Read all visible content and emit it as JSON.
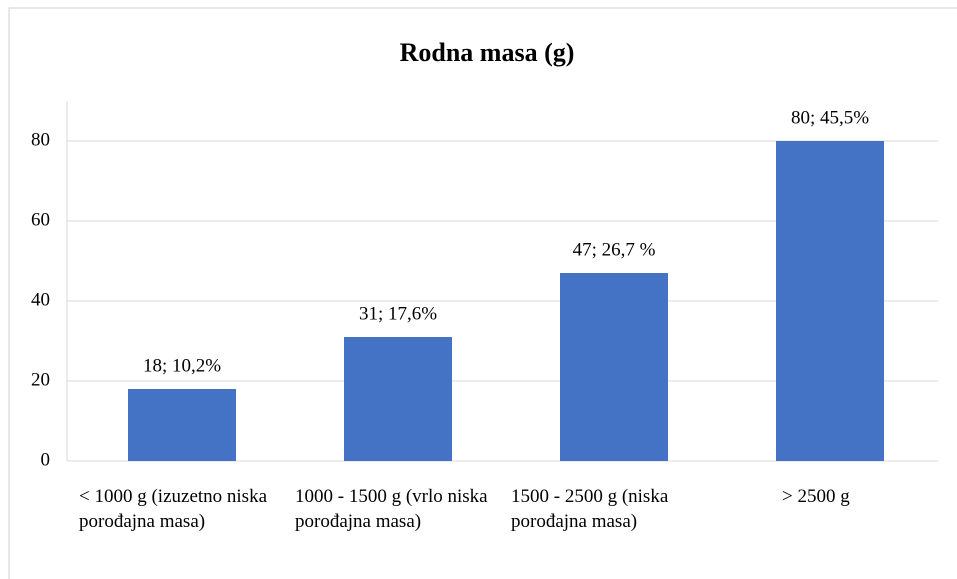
{
  "chart_data": {
    "type": "bar",
    "title": "Rodna masa (g)",
    "categories": [
      "< 1000 g (izuzetno niska porođajna masa)",
      "1000 - 1500 g (vrlo niska porođajna masa)",
      "1500 - 2500 g (niska porođajna masa)",
      "> 2500 g"
    ],
    "values": [
      18,
      31,
      47,
      80
    ],
    "value_labels": [
      "18; 10,2%",
      "31; 17,6%",
      "47; 26,7 %",
      "80; 45,5%"
    ],
    "color": "#4472c4",
    "ylim": [
      0,
      90
    ],
    "yticks": [
      0,
      20,
      40,
      60,
      80
    ],
    "grid": true
  }
}
